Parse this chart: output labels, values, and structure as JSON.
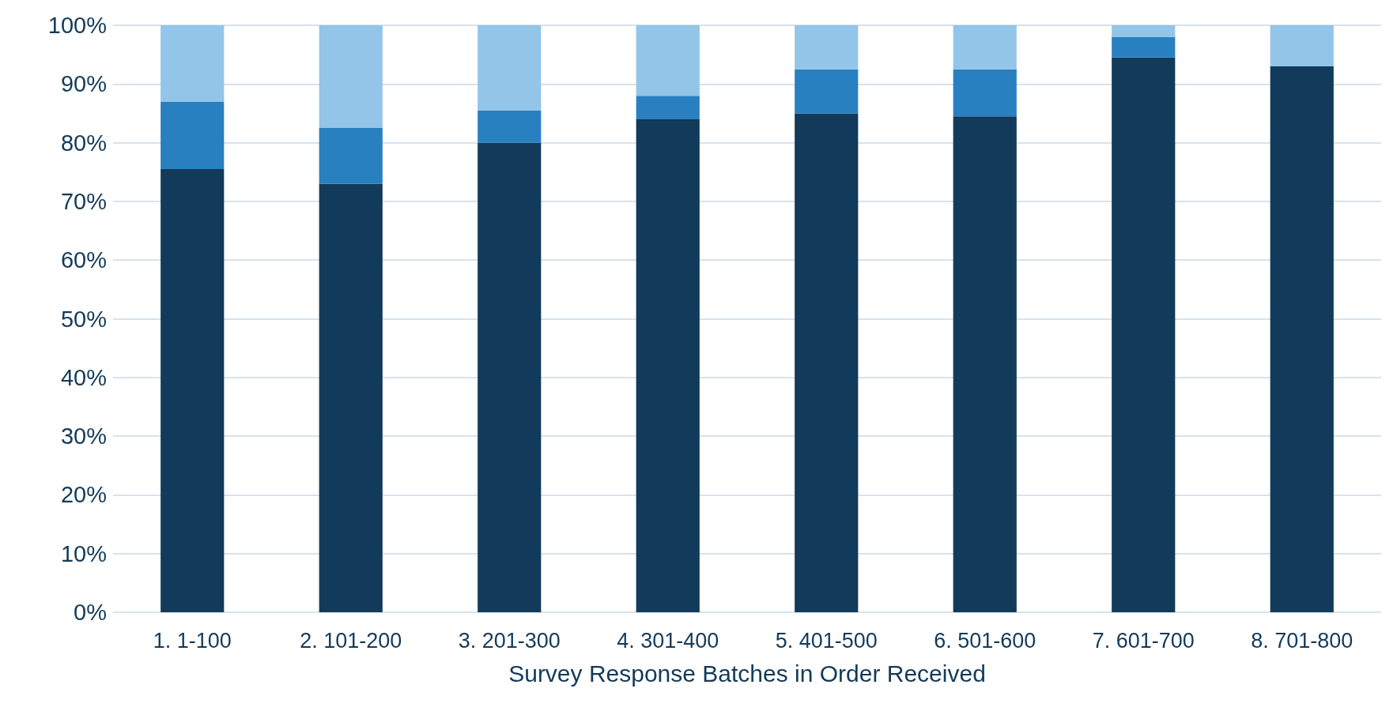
{
  "chart_data": {
    "type": "bar",
    "stacked": true,
    "xlabel": "Survey Response Batches in Order Received",
    "categories": [
      "1. 1-100",
      "2. 101-200",
      "3. 201-300",
      "4. 301-400",
      "5. 401-500",
      "6. 501-600",
      "7. 601-700",
      "8. 701-800"
    ],
    "series": [
      {
        "color": "#123a5a",
        "values": [
          75.5,
          73,
          80,
          84,
          85,
          84.5,
          94.5,
          93
        ]
      },
      {
        "color": "#2880c0",
        "values": [
          11.5,
          9.5,
          5.5,
          4,
          7.5,
          8,
          3.5,
          0
        ]
      },
      {
        "color": "#92c5e8",
        "values": [
          13,
          17.5,
          14.5,
          12,
          7.5,
          7.5,
          2,
          7
        ]
      }
    ],
    "ylim": [
      0,
      100
    ],
    "yticks": [
      {
        "value": 0,
        "label": "0%"
      },
      {
        "value": 10,
        "label": "10%"
      },
      {
        "value": 20,
        "label": "20%"
      },
      {
        "value": 30,
        "label": "30%"
      },
      {
        "value": 40,
        "label": "40%"
      },
      {
        "value": 50,
        "label": "50%"
      },
      {
        "value": 60,
        "label": "60%"
      },
      {
        "value": 70,
        "label": "70%"
      },
      {
        "value": 80,
        "label": "80%"
      },
      {
        "value": 90,
        "label": "90%"
      },
      {
        "value": 100,
        "label": "100%"
      }
    ],
    "grid": "y"
  }
}
